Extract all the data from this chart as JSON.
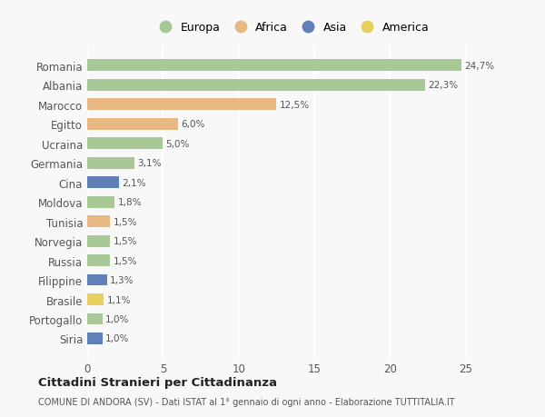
{
  "categories": [
    "Romania",
    "Albania",
    "Marocco",
    "Egitto",
    "Ucraina",
    "Germania",
    "Cina",
    "Moldova",
    "Tunisia",
    "Norvegia",
    "Russia",
    "Filippine",
    "Brasile",
    "Portogallo",
    "Siria"
  ],
  "values": [
    24.7,
    22.3,
    12.5,
    6.0,
    5.0,
    3.1,
    2.1,
    1.8,
    1.5,
    1.5,
    1.5,
    1.3,
    1.1,
    1.0,
    1.0
  ],
  "continents": [
    "Europa",
    "Europa",
    "Africa",
    "Africa",
    "Europa",
    "Europa",
    "Asia",
    "Europa",
    "Africa",
    "Europa",
    "Europa",
    "Asia",
    "America",
    "Europa",
    "Asia"
  ],
  "labels": [
    "24,7%",
    "22,3%",
    "12,5%",
    "6,0%",
    "5,0%",
    "3,1%",
    "2,1%",
    "1,8%",
    "1,5%",
    "1,5%",
    "1,5%",
    "1,3%",
    "1,1%",
    "1,0%",
    "1,0%"
  ],
  "colors": {
    "Europa": "#a8c896",
    "Africa": "#e8b882",
    "Asia": "#6080b8",
    "America": "#e8d060"
  },
  "legend_order": [
    "Europa",
    "Africa",
    "Asia",
    "America"
  ],
  "xlim": [
    0,
    27
  ],
  "xticks": [
    0,
    5,
    10,
    15,
    20,
    25
  ],
  "bg_color": "#f8f8f8",
  "title": "Cittadini Stranieri per Cittadinanza",
  "subtitle": "COMUNE DI ANDORA (SV) - Dati ISTAT al 1° gennaio di ogni anno - Elaborazione TUTTITALIA.IT",
  "bar_height": 0.6,
  "grid_color": "#ffffff",
  "label_color": "#555555",
  "title_color": "#222222"
}
